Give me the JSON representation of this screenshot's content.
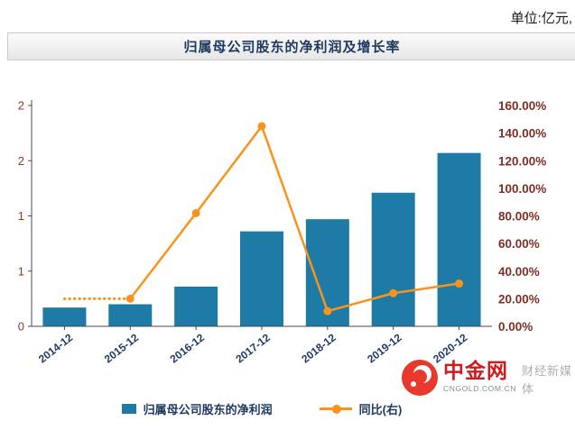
{
  "header": {
    "unit_label": "单位:亿元,"
  },
  "chart_data": {
    "type": "bar+line",
    "title": "归属母公司股东的净利润及增长率",
    "categories": [
      "2014-12",
      "2015-12",
      "2016-12",
      "2017-12",
      "2018-12",
      "2019-12",
      "2020-12"
    ],
    "bar_series": {
      "name": "归属母公司股东的净利润",
      "unit": "亿元",
      "color": "#1e7ba5",
      "values": [
        0.17,
        0.2,
        0.36,
        0.86,
        0.97,
        1.21,
        1.57
      ]
    },
    "line_series": {
      "name": "同比(右)",
      "color": "#f8941d",
      "first_segment_dotted": true,
      "values_percent": [
        20,
        20,
        82,
        145,
        11,
        24,
        31
      ]
    },
    "left_axis": {
      "min": 0,
      "max": 2,
      "ticks_top_to_bottom": [
        "2",
        "2",
        "1",
        "1",
        "0"
      ]
    },
    "right_axis": {
      "min": 0,
      "max": 160,
      "ticks_top_to_bottom": [
        "160.00%",
        "140.00%",
        "120.00%",
        "100.00%",
        "80.00%",
        "60.00%",
        "40.00%",
        "20.00%",
        "0.00%"
      ]
    },
    "grid": false,
    "legend_position": "bottom"
  },
  "watermark": {
    "brand": "中金网",
    "domain": "CNGOLD.COM.CN",
    "tagline": "财经新媒体"
  }
}
